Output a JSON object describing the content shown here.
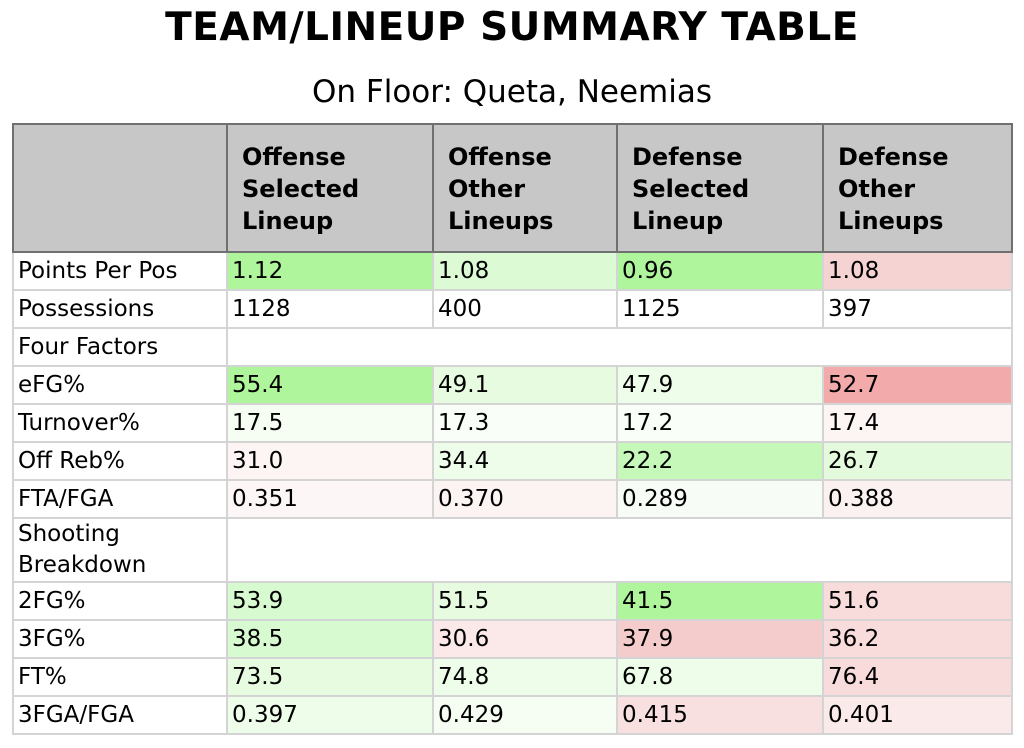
{
  "title": "TEAM/LINEUP SUMMARY TABLE",
  "subtitle": "On Floor: Queta, Neemias",
  "columns": [
    {
      "label": "Offense Selected Lineup"
    },
    {
      "label": "Offense Other Lineups"
    },
    {
      "label": "Defense Selected Lineup"
    },
    {
      "label": "Defense Other Lineups"
    }
  ],
  "rows": [
    {
      "label": "Points Per Pos",
      "cells": [
        {
          "value": "1.12",
          "color": "#aef59b"
        },
        {
          "value": "1.08",
          "color": "#dcfad4"
        },
        {
          "value": "0.96",
          "color": "#aef59b"
        },
        {
          "value": "1.08",
          "color": "#f6d3d3"
        }
      ]
    },
    {
      "label": "Possessions",
      "cells": [
        {
          "value": "1128",
          "color": "#ffffff"
        },
        {
          "value": "400",
          "color": "#ffffff"
        },
        {
          "value": "1125",
          "color": "#ffffff"
        },
        {
          "value": "397",
          "color": "#ffffff"
        }
      ]
    },
    {
      "label": "Four Factors",
      "section": true
    },
    {
      "label": "eFG%",
      "cells": [
        {
          "value": "55.4",
          "color": "#aef59b"
        },
        {
          "value": "49.1",
          "color": "#e6fbe0"
        },
        {
          "value": "47.9",
          "color": "#eefcea"
        },
        {
          "value": "52.7",
          "color": "#f2aaaa"
        }
      ]
    },
    {
      "label": "Turnover%",
      "cells": [
        {
          "value": "17.5",
          "color": "#f6fef4"
        },
        {
          "value": "17.3",
          "color": "#f9fef8"
        },
        {
          "value": "17.2",
          "color": "#f9fef8"
        },
        {
          "value": "17.4",
          "color": "#fdf4f4"
        }
      ]
    },
    {
      "label": "Off Reb%",
      "cells": [
        {
          "value": "31.0",
          "color": "#fdf4f4"
        },
        {
          "value": "34.4",
          "color": "#eefcea"
        },
        {
          "value": "22.2",
          "color": "#c6f8b9"
        },
        {
          "value": "26.7",
          "color": "#e3fadc"
        }
      ]
    },
    {
      "label": "FTA/FGA",
      "cells": [
        {
          "value": "0.351",
          "color": "#fdf6f6"
        },
        {
          "value": "0.370",
          "color": "#fcf3f3"
        },
        {
          "value": "0.289",
          "color": "#f7fdf6"
        },
        {
          "value": "0.388",
          "color": "#fbf1f1"
        }
      ]
    },
    {
      "label": "Shooting Breakdown",
      "section": true,
      "tall": true
    },
    {
      "label": "2FG%",
      "cells": [
        {
          "value": "53.9",
          "color": "#d8fad0"
        },
        {
          "value": "51.5",
          "color": "#e6fbe0"
        },
        {
          "value": "41.5",
          "color": "#aef59b"
        },
        {
          "value": "51.6",
          "color": "#f8dcdc"
        }
      ]
    },
    {
      "label": "3FG%",
      "cells": [
        {
          "value": "38.5",
          "color": "#d8fad0"
        },
        {
          "value": "30.6",
          "color": "#fbe8e8"
        },
        {
          "value": "37.9",
          "color": "#f5cccc"
        },
        {
          "value": "36.2",
          "color": "#f8dcdc"
        }
      ]
    },
    {
      "label": "FT%",
      "cells": [
        {
          "value": "73.5",
          "color": "#e6fbe0"
        },
        {
          "value": "74.8",
          "color": "#eefcea"
        },
        {
          "value": "67.8",
          "color": "#eefcea"
        },
        {
          "value": "76.4",
          "color": "#f8dcdc"
        }
      ]
    },
    {
      "label": "3FGA/FGA",
      "cells": [
        {
          "value": "0.397",
          "color": "#eefcea"
        },
        {
          "value": "0.429",
          "color": "#f6fef4"
        },
        {
          "value": "0.415",
          "color": "#f9e0e0"
        },
        {
          "value": "0.401",
          "color": "#fbeaea"
        }
      ]
    }
  ]
}
